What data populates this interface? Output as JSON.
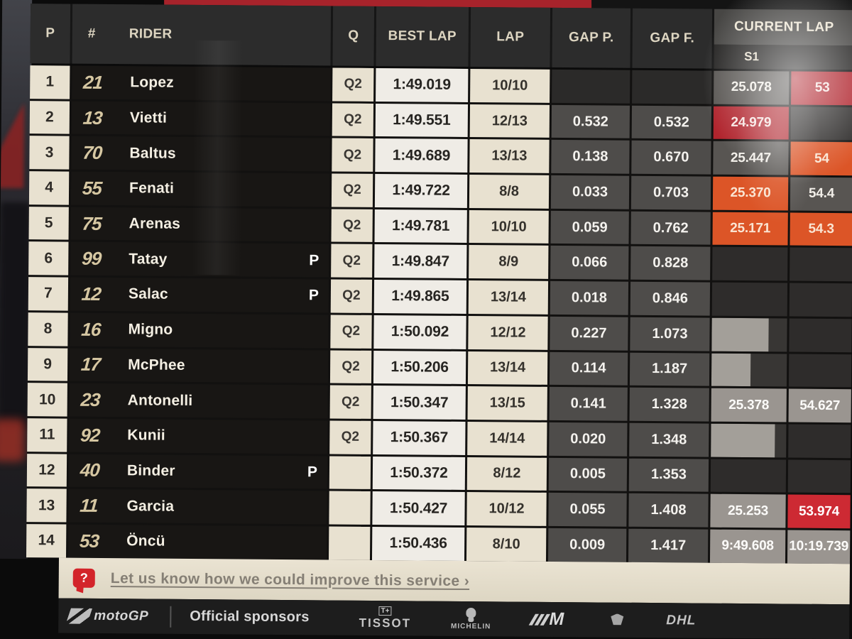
{
  "header": {
    "col_p": "P",
    "col_num": "#",
    "col_rider": "RIDER",
    "col_q": "Q",
    "col_best": "BEST LAP",
    "col_lap": "LAP",
    "col_gap_p": "GAP P.",
    "col_gap_f": "GAP F.",
    "col_current": "CURRENT LAP",
    "col_s1": "S1"
  },
  "colors": {
    "best_overall_sector": "#b0242d",
    "personal_best_sector": "#dc5527",
    "completed_sector": "#9a9590",
    "running_sector": "#585552",
    "accent_red_top": "#a7232b"
  },
  "rows": [
    {
      "pos": "1",
      "num": "21",
      "rider": "Lopez",
      "pit": "",
      "q": "Q2",
      "best": "1:49.019",
      "lap": "10/10",
      "gap_p": "",
      "gap_f": "",
      "s1": {
        "text": "25.078",
        "style": "gray"
      },
      "s2": {
        "text": "53",
        "style": "red"
      }
    },
    {
      "pos": "2",
      "num": "13",
      "rider": "Vietti",
      "pit": "",
      "q": "Q2",
      "best": "1:49.551",
      "lap": "12/13",
      "gap_p": "0.532",
      "gap_f": "0.532",
      "s1": {
        "text": "24.979",
        "style": "red"
      },
      "s2": {
        "text": "",
        "style": "dark"
      }
    },
    {
      "pos": "3",
      "num": "70",
      "rider": "Baltus",
      "pit": "",
      "q": "Q2",
      "best": "1:49.689",
      "lap": "13/13",
      "gap_p": "0.138",
      "gap_f": "0.670",
      "s1": {
        "text": "25.447",
        "style": "gray"
      },
      "s2": {
        "text": "54",
        "style": "orange"
      }
    },
    {
      "pos": "4",
      "num": "55",
      "rider": "Fenati",
      "pit": "",
      "q": "Q2",
      "best": "1:49.722",
      "lap": "8/8",
      "gap_p": "0.033",
      "gap_f": "0.703",
      "s1": {
        "text": "25.370",
        "style": "orange"
      },
      "s2": {
        "text": "54.4",
        "style": "gray"
      }
    },
    {
      "pos": "5",
      "num": "75",
      "rider": "Arenas",
      "pit": "",
      "q": "Q2",
      "best": "1:49.781",
      "lap": "10/10",
      "gap_p": "0.059",
      "gap_f": "0.762",
      "s1": {
        "text": "25.171",
        "style": "orange"
      },
      "s2": {
        "text": "54.3",
        "style": "orange"
      }
    },
    {
      "pos": "6",
      "num": "99",
      "rider": "Tatay",
      "pit": "P",
      "q": "Q2",
      "best": "1:49.847",
      "lap": "8/9",
      "gap_p": "0.066",
      "gap_f": "0.828",
      "s1": {
        "text": "",
        "style": "dark"
      },
      "s2": {
        "text": "",
        "style": "dark"
      }
    },
    {
      "pos": "7",
      "num": "12",
      "rider": "Salac",
      "pit": "P",
      "q": "Q2",
      "best": "1:49.865",
      "lap": "13/14",
      "gap_p": "0.018",
      "gap_f": "0.846",
      "s1": {
        "text": "",
        "style": "dark"
      },
      "s2": {
        "text": "",
        "style": "dark"
      }
    },
    {
      "pos": "8",
      "num": "16",
      "rider": "Migno",
      "pit": "",
      "q": "Q2",
      "best": "1:50.092",
      "lap": "12/12",
      "gap_p": "0.227",
      "gap_f": "1.073",
      "s1": {
        "text": "",
        "style": "bar",
        "bar": 75
      },
      "s2": {
        "text": "",
        "style": "dark"
      }
    },
    {
      "pos": "9",
      "num": "17",
      "rider": "McPhee",
      "pit": "",
      "q": "Q2",
      "best": "1:50.206",
      "lap": "13/14",
      "gap_p": "0.114",
      "gap_f": "1.187",
      "s1": {
        "text": "",
        "style": "bar",
        "bar": 52
      },
      "s2": {
        "text": "",
        "style": "dark"
      }
    },
    {
      "pos": "10",
      "num": "23",
      "rider": "Antonelli",
      "pit": "",
      "q": "Q2",
      "best": "1:50.347",
      "lap": "13/15",
      "gap_p": "0.141",
      "gap_f": "1.328",
      "s1": {
        "text": "25.378",
        "style": "lightgray"
      },
      "s2": {
        "text": "54.627",
        "style": "lightgray"
      }
    },
    {
      "pos": "11",
      "num": "92",
      "rider": "Kunii",
      "pit": "",
      "q": "Q2",
      "best": "1:50.367",
      "lap": "14/14",
      "gap_p": "0.020",
      "gap_f": "1.348",
      "s1": {
        "text": "",
        "style": "bar",
        "bar": 85
      },
      "s2": {
        "text": "",
        "style": "dark"
      }
    },
    {
      "pos": "12",
      "num": "40",
      "rider": "Binder",
      "pit": "P",
      "q": "",
      "best": "1:50.372",
      "lap": "8/12",
      "gap_p": "0.005",
      "gap_f": "1.353",
      "s1": {
        "text": "",
        "style": "dark"
      },
      "s2": {
        "text": "",
        "style": "dark"
      }
    },
    {
      "pos": "13",
      "num": "11",
      "rider": "Garcia",
      "pit": "",
      "q": "",
      "best": "1:50.427",
      "lap": "10/12",
      "gap_p": "0.055",
      "gap_f": "1.408",
      "s1": {
        "text": "25.253",
        "style": "lightgray"
      },
      "s2": {
        "text": "53.974",
        "style": "redbright"
      }
    },
    {
      "pos": "14",
      "num": "53",
      "rider": "Öncü",
      "pit": "",
      "q": "",
      "best": "1:50.436",
      "lap": "8/10",
      "gap_p": "0.009",
      "gap_f": "1.417",
      "s1": {
        "text": "9:49.608",
        "style": "lightgray"
      },
      "s2": {
        "text": "10:19.739",
        "style": "lightgray"
      }
    }
  ],
  "feedback": {
    "icon": "question-bubble",
    "label": "Let us know how we could improve this service ›"
  },
  "sponsors": {
    "brand": "motoGP",
    "title": "Official sponsors",
    "tissot": "TISSOT",
    "tissot_plus": "T+",
    "michelin": "MICHELIN",
    "bmw_m": "M",
    "dhl": "DHL"
  }
}
